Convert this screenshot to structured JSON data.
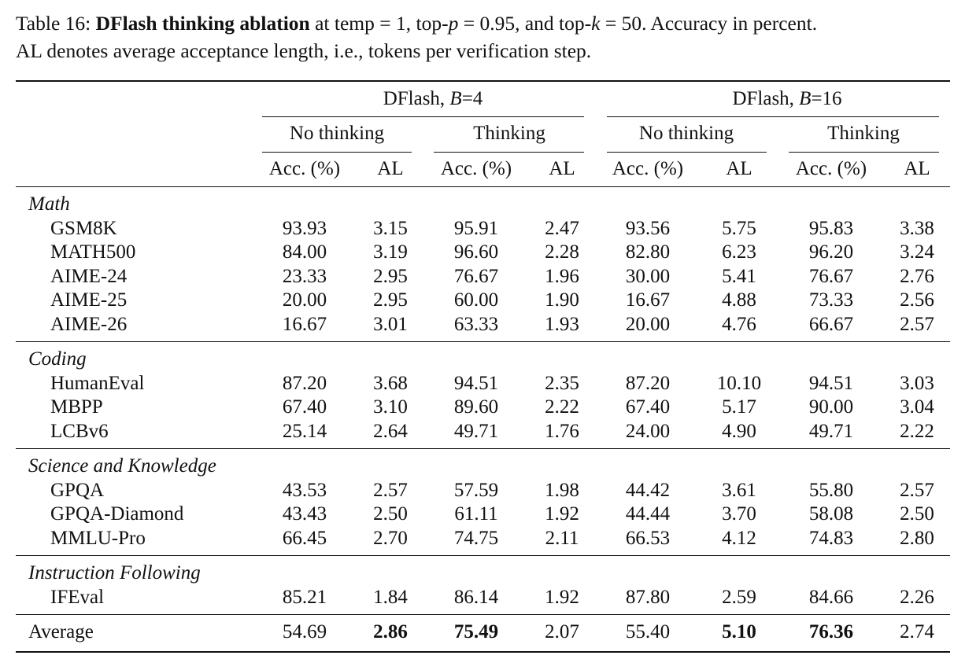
{
  "caption": {
    "label": "Table 16:",
    "bold_title": "DFlash thinking ablation",
    "text_a": " at temp = 1, top-",
    "p_var": "p",
    "text_b": " = 0.95, and top-",
    "k_var": "k",
    "text_c": " = 50. Accuracy in percent.",
    "line2": "AL denotes average acceptance length, i.e., tokens per verification step."
  },
  "groups": [
    {
      "prefix": "DFlash, ",
      "var": "B",
      "eq": "=4"
    },
    {
      "prefix": "DFlash, ",
      "var": "B",
      "eq": "=16"
    }
  ],
  "subgroups": [
    "No thinking",
    "Thinking",
    "No thinking",
    "Thinking"
  ],
  "columns": [
    "Acc. (%)",
    "AL",
    "Acc. (%)",
    "AL",
    "Acc. (%)",
    "AL",
    "Acc. (%)",
    "AL"
  ],
  "sections": [
    {
      "name": "Math",
      "rows": [
        {
          "name": "GSM8K",
          "values": [
            "93.93",
            "3.15",
            "95.91",
            "2.47",
            "93.56",
            "5.75",
            "95.83",
            "3.38"
          ]
        },
        {
          "name": "MATH500",
          "values": [
            "84.00",
            "3.19",
            "96.60",
            "2.28",
            "82.80",
            "6.23",
            "96.20",
            "3.24"
          ]
        },
        {
          "name": "AIME-24",
          "values": [
            "23.33",
            "2.95",
            "76.67",
            "1.96",
            "30.00",
            "5.41",
            "76.67",
            "2.76"
          ]
        },
        {
          "name": "AIME-25",
          "values": [
            "20.00",
            "2.95",
            "60.00",
            "1.90",
            "16.67",
            "4.88",
            "73.33",
            "2.56"
          ]
        },
        {
          "name": "AIME-26",
          "values": [
            "16.67",
            "3.01",
            "63.33",
            "1.93",
            "20.00",
            "4.76",
            "66.67",
            "2.57"
          ]
        }
      ]
    },
    {
      "name": "Coding",
      "rows": [
        {
          "name": "HumanEval",
          "values": [
            "87.20",
            "3.68",
            "94.51",
            "2.35",
            "87.20",
            "10.10",
            "94.51",
            "3.03"
          ]
        },
        {
          "name": "MBPP",
          "values": [
            "67.40",
            "3.10",
            "89.60",
            "2.22",
            "67.40",
            "5.17",
            "90.00",
            "3.04"
          ]
        },
        {
          "name": "LCBv6",
          "values": [
            "25.14",
            "2.64",
            "49.71",
            "1.76",
            "24.00",
            "4.90",
            "49.71",
            "2.22"
          ]
        }
      ]
    },
    {
      "name": "Science and Knowledge",
      "rows": [
        {
          "name": "GPQA",
          "values": [
            "43.53",
            "2.57",
            "57.59",
            "1.98",
            "44.42",
            "3.61",
            "55.80",
            "2.57"
          ]
        },
        {
          "name": "GPQA-Diamond",
          "values": [
            "43.43",
            "2.50",
            "61.11",
            "1.92",
            "44.44",
            "3.70",
            "58.08",
            "2.50"
          ]
        },
        {
          "name": "MMLU-Pro",
          "values": [
            "66.45",
            "2.70",
            "74.75",
            "2.11",
            "66.53",
            "4.12",
            "74.83",
            "2.80"
          ]
        }
      ]
    },
    {
      "name": "Instruction Following",
      "rows": [
        {
          "name": "IFEval",
          "values": [
            "85.21",
            "1.84",
            "86.14",
            "1.92",
            "87.80",
            "2.59",
            "84.66",
            "2.26"
          ]
        }
      ]
    }
  ],
  "average": {
    "name": "Average",
    "values": [
      "54.69",
      "2.86",
      "75.49",
      "2.07",
      "55.40",
      "5.10",
      "76.36",
      "2.74"
    ],
    "bold": [
      false,
      true,
      true,
      false,
      false,
      true,
      true,
      false
    ]
  }
}
